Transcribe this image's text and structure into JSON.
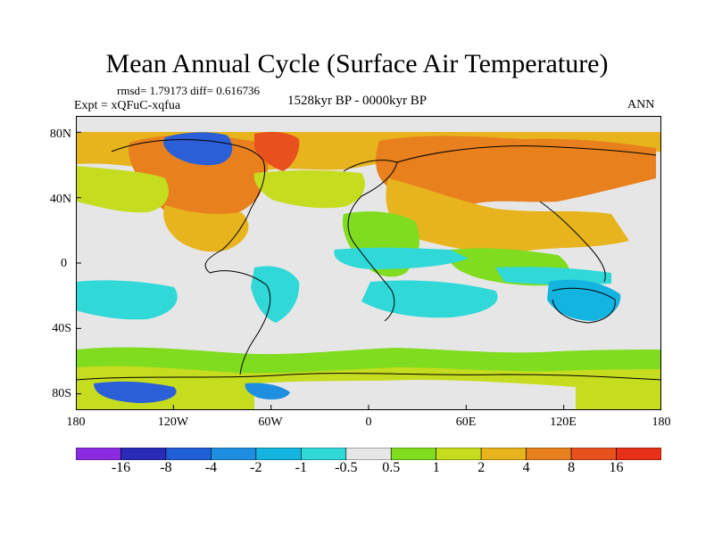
{
  "title": "Mean Annual Cycle (Surface Air Temperature)",
  "stats_text": "rmsd= 1.79173 diff= 0.616736",
  "expt_text": "Expt = xQFuC-xqfua",
  "period_text": "1528kyr BP - 0000kyr BP",
  "season_text": "ANN",
  "y_axis": {
    "ticks": [
      {
        "label": "80N",
        "lat": 80
      },
      {
        "label": "40N",
        "lat": 40
      },
      {
        "label": "0",
        "lat": 0
      },
      {
        "label": "40S",
        "lat": -40
      },
      {
        "label": "80S",
        "lat": -80
      }
    ],
    "range": [
      -90,
      90
    ]
  },
  "x_axis": {
    "ticks": [
      {
        "label": "180",
        "lon": -180
      },
      {
        "label": "120W",
        "lon": -120
      },
      {
        "label": "60W",
        "lon": -60
      },
      {
        "label": "0",
        "lon": 0
      },
      {
        "label": "60E",
        "lon": 60
      },
      {
        "label": "120E",
        "lon": 120
      },
      {
        "label": "180",
        "lon": 180
      }
    ],
    "range": [
      -180,
      180
    ]
  },
  "colorbar": {
    "labels": [
      "-16",
      "-8",
      "-4",
      "-2",
      "-1",
      "-0.5",
      "0.5",
      "1",
      "2",
      "4",
      "8",
      "16"
    ],
    "colors": [
      "#8a2be2",
      "#2a2ab8",
      "#1f5fd8",
      "#1e8fe0",
      "#14b4e0",
      "#30d8d8",
      "#e6e6e6",
      "#7fdc1e",
      "#c6dc1e",
      "#e8b41e",
      "#e8801e",
      "#e8501e",
      "#e83018"
    ]
  },
  "colors": {
    "ocean_neutral": "#e6e6e6",
    "coastline": "#000000"
  }
}
